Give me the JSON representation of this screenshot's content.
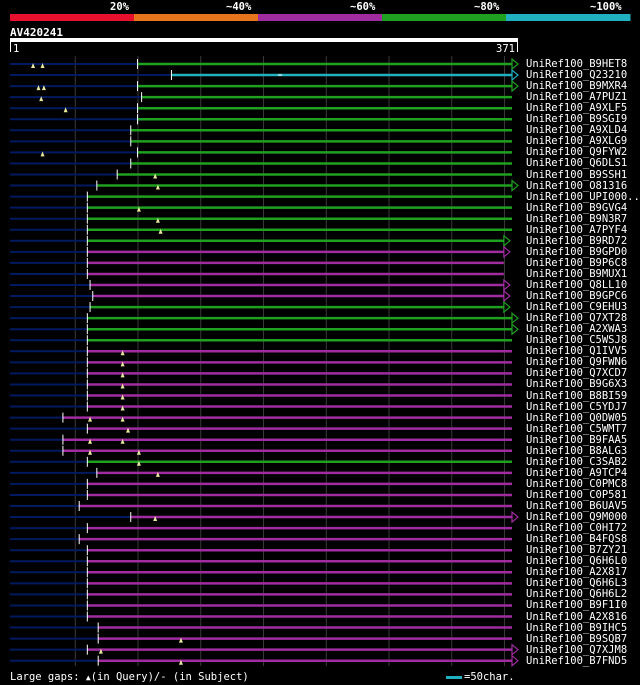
{
  "query_name": "AV420241",
  "query_start": "1",
  "query_end": "371",
  "identity_scale": {
    "labels": [
      "20%",
      "~40%",
      "~60%",
      "~80%",
      "~100%"
    ],
    "colors": [
      "#e8102c",
      "#e8741c",
      "#a02ca0",
      "#20a020",
      "#20b0c0"
    ]
  },
  "colors": {
    "green": "#20a020",
    "cyan": "#20b0c0",
    "purple": "#a02ca0",
    "navy": "#001a60",
    "cursor": "#e8e8a0"
  },
  "legend": {
    "text_prefix": "Large gaps: ",
    "query_glyph": "▲",
    "text_query": "(in Query)/- (in Subject)",
    "scale_text": "=50char."
  },
  "hits": [
    {
      "name": "UniRef100_B9HET8",
      "color": "green",
      "qs": 95,
      "se": 371,
      "arrow": "right",
      "ins": [
        18,
        25
      ],
      "dash": []
    },
    {
      "name": "UniRef100_Q23210",
      "color": "cyan",
      "qs": 120,
      "se": 371,
      "arrow": "right",
      "ins": [],
      "dash": [
        200
      ]
    },
    {
      "name": "UniRef100_B9MXR4",
      "color": "green",
      "qs": 95,
      "se": 371,
      "arrow": "right",
      "ins": [
        22,
        26
      ],
      "dash": []
    },
    {
      "name": "UniRef100_A7PUZ1",
      "color": "green",
      "qs": 98,
      "se": 371,
      "arrow": "none",
      "ins": [
        24
      ],
      "dash": []
    },
    {
      "name": "UniRef100_A9XLF5",
      "color": "green",
      "qs": 95,
      "se": 371,
      "arrow": "none",
      "ins": [
        42
      ],
      "dash": []
    },
    {
      "name": "UniRef100_B9SGI9",
      "color": "green",
      "qs": 95,
      "se": 371,
      "arrow": "none",
      "ins": [],
      "dash": []
    },
    {
      "name": "UniRef100_A9XLD4",
      "color": "green",
      "qs": 90,
      "se": 371,
      "arrow": "none",
      "ins": [],
      "dash": []
    },
    {
      "name": "UniRef100_A9XLG9",
      "color": "green",
      "qs": 90,
      "se": 371,
      "arrow": "none",
      "ins": [],
      "dash": []
    },
    {
      "name": "UniRef100_Q9FYW2",
      "color": "green",
      "qs": 95,
      "se": 371,
      "arrow": "none",
      "ins": [
        25
      ],
      "dash": []
    },
    {
      "name": "UniRef100_Q6DLS1",
      "color": "green",
      "qs": 90,
      "se": 371,
      "arrow": "none",
      "ins": [],
      "dash": []
    },
    {
      "name": "UniRef100_B9SSH1",
      "color": "green",
      "qs": 80,
      "se": 371,
      "arrow": "none",
      "ins": [
        108
      ],
      "dash": []
    },
    {
      "name": "UniRef100_O81316",
      "color": "green",
      "qs": 65,
      "se": 371,
      "arrow": "right",
      "ins": [
        110
      ],
      "dash": []
    },
    {
      "name": "UniRef100_UPI000..",
      "color": "green",
      "qs": 58,
      "se": 371,
      "arrow": "none",
      "ins": [],
      "dash": []
    },
    {
      "name": "UniRef100_B9GVG4",
      "color": "green",
      "qs": 58,
      "se": 371,
      "arrow": "none",
      "ins": [
        96
      ],
      "dash": []
    },
    {
      "name": "UniRef100_B9N3R7",
      "color": "green",
      "qs": 58,
      "se": 371,
      "arrow": "none",
      "ins": [
        110
      ],
      "dash": []
    },
    {
      "name": "UniRef100_A7PYF4",
      "color": "green",
      "qs": 58,
      "se": 371,
      "arrow": "none",
      "ins": [
        112
      ],
      "dash": []
    },
    {
      "name": "UniRef100_B9RD72",
      "color": "green",
      "qs": 58,
      "se": 365,
      "arrow": "right",
      "ins": [],
      "dash": []
    },
    {
      "name": "UniRef100_B9GPD0",
      "color": "purple",
      "qs": 58,
      "se": 365,
      "arrow": "right",
      "ins": [],
      "dash": []
    },
    {
      "name": "UniRef100_B9P6C8",
      "color": "purple",
      "qs": 58,
      "se": 365,
      "arrow": "none",
      "ins": [],
      "dash": []
    },
    {
      "name": "UniRef100_B9MUX1",
      "color": "purple",
      "qs": 58,
      "se": 365,
      "arrow": "none",
      "ins": [],
      "dash": []
    },
    {
      "name": "UniRef100_Q8LL10",
      "color": "purple",
      "qs": 60,
      "se": 365,
      "arrow": "right",
      "ins": [],
      "dash": []
    },
    {
      "name": "UniRef100_B9GPC6",
      "color": "purple",
      "qs": 62,
      "se": 365,
      "arrow": "right",
      "ins": [],
      "dash": []
    },
    {
      "name": "UniRef100_C9EHU3",
      "color": "green",
      "qs": 60,
      "se": 365,
      "arrow": "right",
      "ins": [],
      "dash": []
    },
    {
      "name": "UniRef100_Q7XT28",
      "color": "green",
      "qs": 58,
      "se": 371,
      "arrow": "right",
      "ins": [],
      "dash": []
    },
    {
      "name": "UniRef100_A2XWA3",
      "color": "green",
      "qs": 58,
      "se": 371,
      "arrow": "right",
      "ins": [],
      "dash": []
    },
    {
      "name": "UniRef100_C5WSJ8",
      "color": "green",
      "qs": 58,
      "se": 371,
      "arrow": "none",
      "ins": [],
      "dash": []
    },
    {
      "name": "UniRef100_Q1IVV5",
      "color": "purple",
      "qs": 58,
      "se": 371,
      "arrow": "none",
      "ins": [
        84
      ],
      "dash": []
    },
    {
      "name": "UniRef100_Q9FWN6",
      "color": "purple",
      "qs": 58,
      "se": 371,
      "arrow": "none",
      "ins": [
        84
      ],
      "dash": []
    },
    {
      "name": "UniRef100_Q7XCD7",
      "color": "purple",
      "qs": 58,
      "se": 371,
      "arrow": "none",
      "ins": [
        84
      ],
      "dash": []
    },
    {
      "name": "UniRef100_B9G6X3",
      "color": "purple",
      "qs": 58,
      "se": 371,
      "arrow": "none",
      "ins": [
        84
      ],
      "dash": []
    },
    {
      "name": "UniRef100_B8BI59",
      "color": "purple",
      "qs": 58,
      "se": 371,
      "arrow": "none",
      "ins": [
        84
      ],
      "dash": []
    },
    {
      "name": "UniRef100_C5YDJ7",
      "color": "purple",
      "qs": 58,
      "se": 371,
      "arrow": "none",
      "ins": [
        84
      ],
      "dash": []
    },
    {
      "name": "UniRef100_Q0DW05",
      "color": "purple",
      "qs": 40,
      "se": 371,
      "arrow": "none",
      "ins": [
        60,
        84
      ],
      "dash": []
    },
    {
      "name": "UniRef100_C5WMT7",
      "color": "purple",
      "qs": 58,
      "se": 371,
      "arrow": "none",
      "ins": [
        88
      ],
      "dash": []
    },
    {
      "name": "UniRef100_B9FAA5",
      "color": "purple",
      "qs": 40,
      "se": 371,
      "arrow": "none",
      "ins": [
        60,
        84
      ],
      "dash": []
    },
    {
      "name": "UniRef100_B8ALG3",
      "color": "purple",
      "qs": 40,
      "se": 371,
      "arrow": "none",
      "ins": [
        60,
        96
      ],
      "dash": []
    },
    {
      "name": "UniRef100_C3SAB2",
      "color": "green",
      "qs": 58,
      "se": 371,
      "arrow": "none",
      "ins": [
        96
      ],
      "dash": []
    },
    {
      "name": "UniRef100_A9TCP4",
      "color": "purple",
      "qs": 65,
      "se": 371,
      "arrow": "none",
      "ins": [
        110
      ],
      "dash": []
    },
    {
      "name": "UniRef100_C0PMC8",
      "color": "purple",
      "qs": 58,
      "se": 371,
      "arrow": "none",
      "ins": [],
      "dash": []
    },
    {
      "name": "UniRef100_C0P581",
      "color": "purple",
      "qs": 58,
      "se": 371,
      "arrow": "none",
      "ins": [],
      "dash": []
    },
    {
      "name": "UniRef100_B6UAV5",
      "color": "purple",
      "qs": 52,
      "se": 371,
      "arrow": "none",
      "ins": [],
      "dash": []
    },
    {
      "name": "UniRef100_Q9M000",
      "color": "purple",
      "qs": 90,
      "se": 371,
      "arrow": "right",
      "ins": [
        108
      ],
      "dash": []
    },
    {
      "name": "UniRef100_C0HI72",
      "color": "purple",
      "qs": 58,
      "se": 371,
      "arrow": "none",
      "ins": [],
      "dash": []
    },
    {
      "name": "UniRef100_B4FQS8",
      "color": "purple",
      "qs": 52,
      "se": 371,
      "arrow": "none",
      "ins": [],
      "dash": []
    },
    {
      "name": "UniRef100_B7ZY21",
      "color": "purple",
      "qs": 58,
      "se": 371,
      "arrow": "none",
      "ins": [],
      "dash": []
    },
    {
      "name": "UniRef100_Q6H6L0",
      "color": "purple",
      "qs": 58,
      "se": 371,
      "arrow": "none",
      "ins": [],
      "dash": []
    },
    {
      "name": "UniRef100_A2X817",
      "color": "purple",
      "qs": 58,
      "se": 371,
      "arrow": "none",
      "ins": [],
      "dash": []
    },
    {
      "name": "UniRef100_Q6H6L3",
      "color": "purple",
      "qs": 58,
      "se": 371,
      "arrow": "none",
      "ins": [],
      "dash": []
    },
    {
      "name": "UniRef100_Q6H6L2",
      "color": "purple",
      "qs": 58,
      "se": 371,
      "arrow": "none",
      "ins": [],
      "dash": []
    },
    {
      "name": "UniRef100_B9F1I0",
      "color": "purple",
      "qs": 58,
      "se": 371,
      "arrow": "none",
      "ins": [],
      "dash": []
    },
    {
      "name": "UniRef100_A2X816",
      "color": "purple",
      "qs": 58,
      "se": 371,
      "arrow": "none",
      "ins": [],
      "dash": []
    },
    {
      "name": "UniRef100_B9IHC5",
      "color": "purple",
      "qs": 66,
      "se": 371,
      "arrow": "none",
      "ins": [],
      "dash": []
    },
    {
      "name": "UniRef100_B9SQB7",
      "color": "purple",
      "qs": 66,
      "se": 371,
      "arrow": "none",
      "ins": [
        127
      ],
      "dash": []
    },
    {
      "name": "UniRef100_Q7XJM8",
      "color": "purple",
      "qs": 58,
      "se": 371,
      "arrow": "right",
      "ins": [
        68
      ],
      "dash": []
    },
    {
      "name": "UniRef100_B7FND5",
      "color": "purple",
      "qs": 66,
      "se": 371,
      "arrow": "right",
      "ins": [
        127
      ],
      "dash": []
    }
  ]
}
